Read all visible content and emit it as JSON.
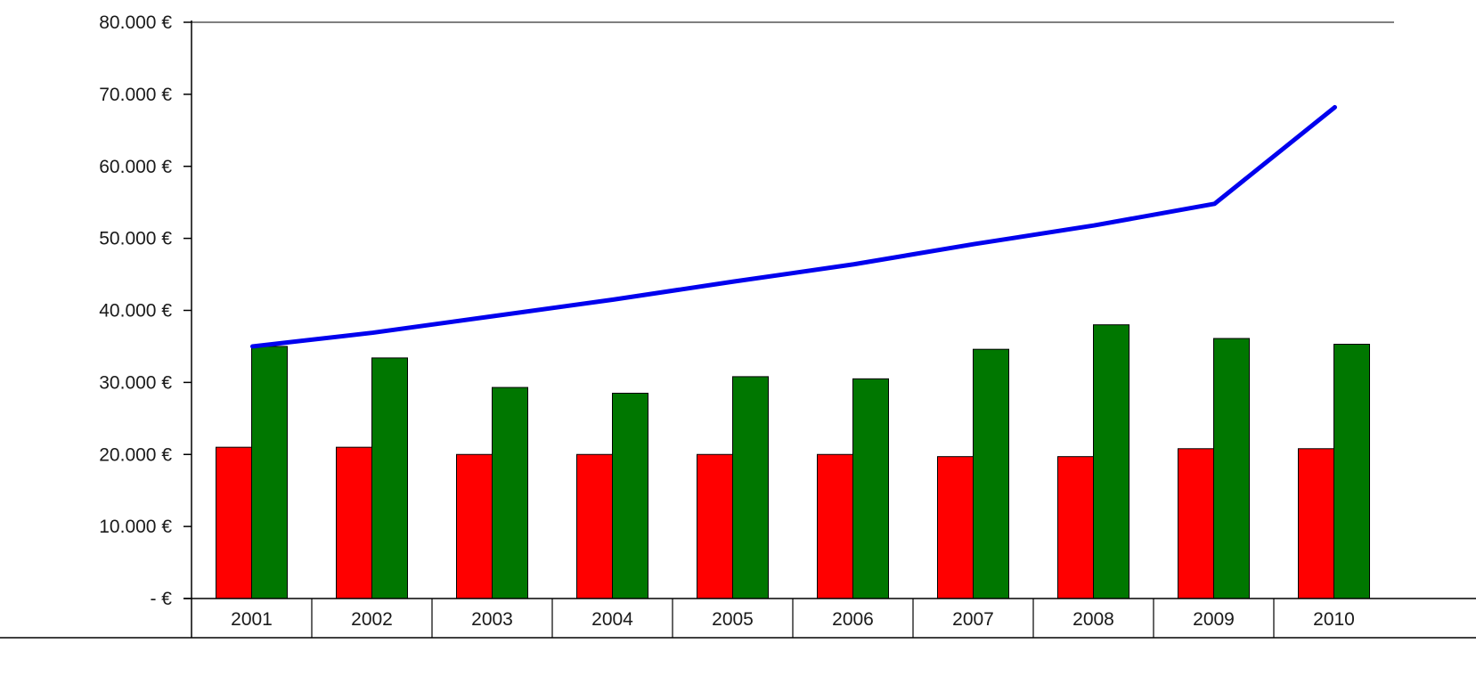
{
  "chart_data": {
    "type": "bar",
    "categories": [
      "2001",
      "2002",
      "2003",
      "2004",
      "2005",
      "2006",
      "2007",
      "2008",
      "2009",
      "2010"
    ],
    "y_tick_labels": [
      "- €",
      "10.000 €",
      "20.000 €",
      "30.000 €",
      "40.000 €",
      "50.000 €",
      "60.000 €",
      "70.000 €",
      "80.000 €"
    ],
    "y_tick_values": [
      0,
      10000,
      20000,
      30000,
      40000,
      50000,
      60000,
      70000,
      80000
    ],
    "ylim": [
      0,
      80000
    ],
    "grid": false,
    "series": [
      {
        "kind": "bar",
        "color": "#ff0000",
        "values": [
          21000,
          21000,
          20000,
          20000,
          20000,
          20000,
          19700,
          19700,
          20800,
          20800
        ]
      },
      {
        "kind": "bar",
        "color": "#007700",
        "values": [
          35000,
          33400,
          29300,
          28500,
          30800,
          30500,
          34600,
          38000,
          36100,
          35300
        ]
      },
      {
        "kind": "line",
        "color": "#0000ee",
        "values": [
          35000,
          36900,
          39200,
          41500,
          44000,
          46400,
          49200,
          51800,
          54800,
          68200
        ]
      }
    ]
  }
}
